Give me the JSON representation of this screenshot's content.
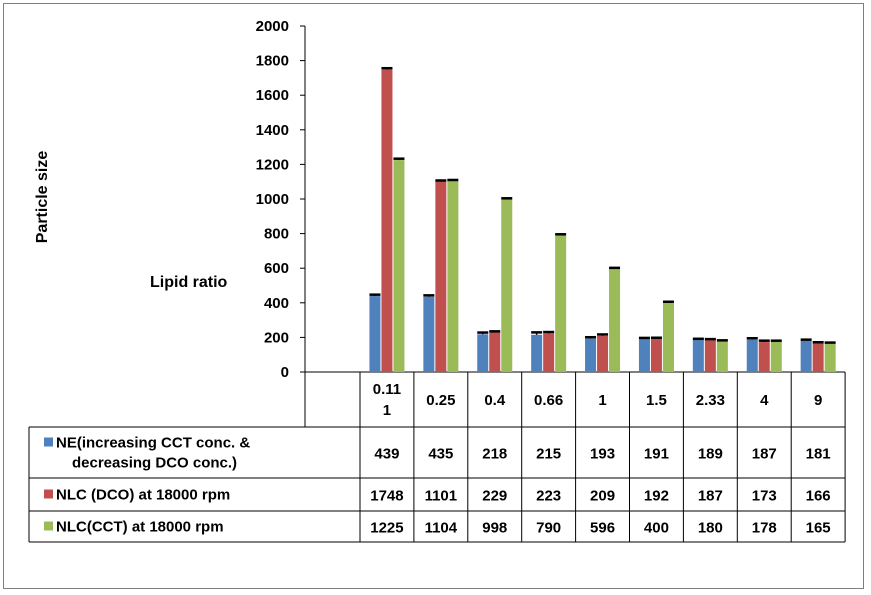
{
  "chart_data": {
    "type": "bar",
    "ylabel": "Particle size",
    "annotation": "Lipid ratio",
    "ylim": [
      0,
      2000
    ],
    "yticks": [
      "0",
      "200",
      "400",
      "600",
      "800",
      "1000",
      "1200",
      "1400",
      "1600",
      "1800",
      "2000"
    ],
    "categories": [
      "0.11 1",
      "0.25",
      "0.4",
      "0.66",
      "1",
      "1.5",
      "2.33",
      "4",
      "9"
    ],
    "category_lines": [
      [
        "0.11",
        "1"
      ],
      [
        "0.25"
      ],
      [
        "0.4"
      ],
      [
        "0.66"
      ],
      [
        "1"
      ],
      [
        "1.5"
      ],
      [
        "2.33"
      ],
      [
        "4"
      ],
      [
        "9"
      ]
    ],
    "series": [
      {
        "name": "NE(increasing CCT conc. & decreasing DCO conc.)",
        "name_lines": [
          "NE(increasing CCT conc. &",
          "decreasing DCO conc.)"
        ],
        "color": "#4f81bd",
        "values": [
          439,
          435,
          218,
          215,
          193,
          191,
          189,
          187,
          181
        ],
        "errors": [
          8,
          8,
          10,
          14,
          8,
          6,
          3,
          8,
          6
        ]
      },
      {
        "name": "NLC (DCO) at 18000 rpm",
        "name_lines": [
          "NLC (DCO) at 18000 rpm"
        ],
        "color": "#c0504d",
        "values": [
          1748,
          1101,
          229,
          223,
          209,
          192,
          187,
          173,
          166
        ],
        "errors": [
          8,
          6,
          6,
          8,
          8,
          6,
          3,
          8,
          6
        ]
      },
      {
        "name": "NLC(CCT) at 18000 rpm",
        "name_lines": [
          "NLC(CCT) at 18000 rpm"
        ],
        "color": "#9bbb59",
        "values": [
          1225,
          1104,
          998,
          790,
          596,
          400,
          180,
          178,
          165
        ],
        "errors": [
          8,
          6,
          6,
          6,
          6,
          6,
          3,
          3,
          5
        ]
      }
    ],
    "table": {
      "rows": [
        [
          "439",
          "435",
          "218",
          "215",
          "193",
          "191",
          "189",
          "187",
          "181"
        ],
        [
          "1748",
          "1101",
          "229",
          "223",
          "209",
          "192",
          "187",
          "173",
          "166"
        ],
        [
          "1225",
          "1104",
          "998",
          "790",
          "596",
          "400",
          "180",
          "178",
          "165"
        ]
      ]
    },
    "grid": false,
    "legend": "in data table"
  }
}
